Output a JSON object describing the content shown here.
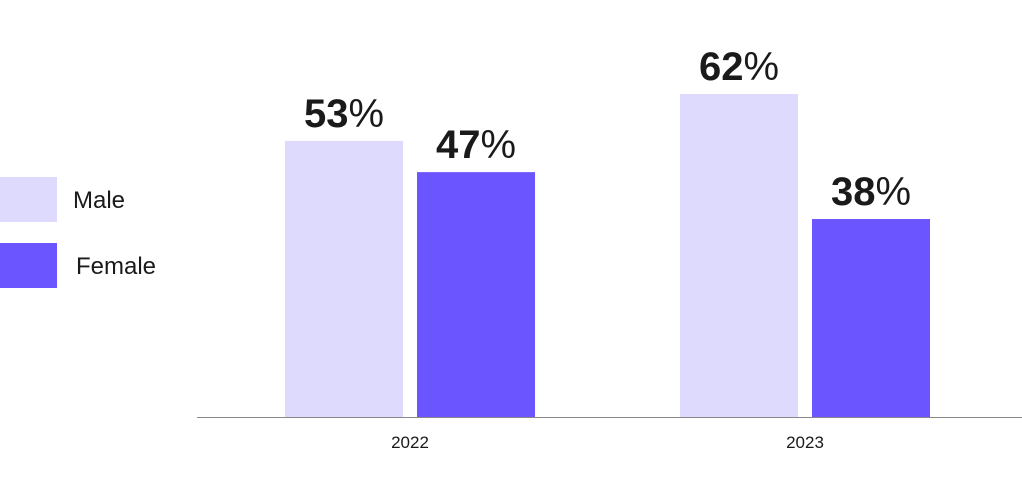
{
  "chart_data": {
    "type": "bar",
    "categories": [
      "2022",
      "2023"
    ],
    "series": [
      {
        "name": "Male",
        "color": "#dedafe",
        "values": [
          53,
          62
        ],
        "value_labels": [
          "53%",
          "62%"
        ]
      },
      {
        "name": "Female",
        "color": "#6b55fe",
        "values": [
          47,
          38
        ],
        "value_labels": [
          "47%",
          "38%"
        ]
      }
    ]
  }
}
